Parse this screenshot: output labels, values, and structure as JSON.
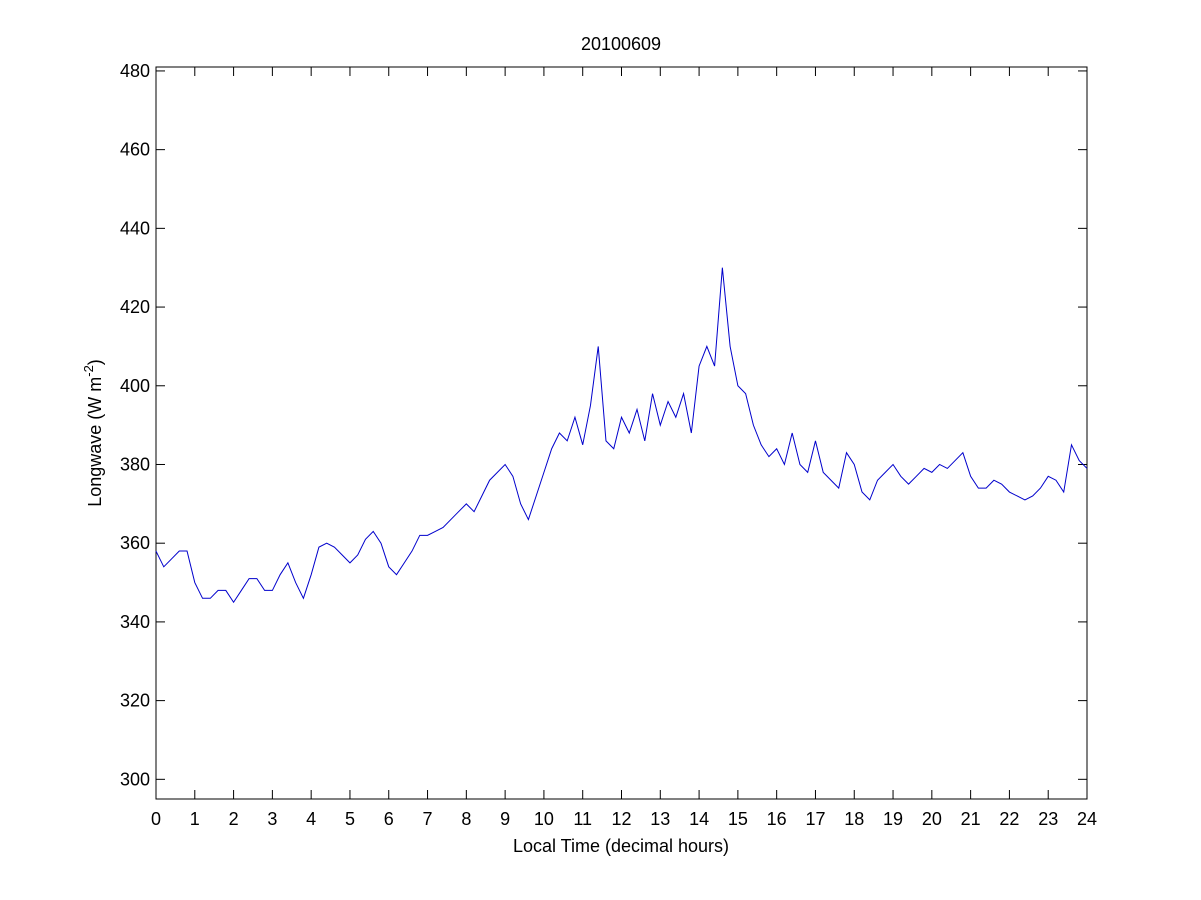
{
  "chart_data": {
    "type": "line",
    "title": "20100609",
    "x_label": "Local Time (decimal hours)",
    "y_label": {
      "text": "Longwave (W m",
      "sup": "-2",
      "end": ")"
    },
    "x": [
      0,
      0.2,
      0.4,
      0.6,
      0.8,
      1,
      1.2,
      1.4,
      1.6,
      1.8,
      2,
      2.2,
      2.4,
      2.6,
      2.8,
      3,
      3.2,
      3.4,
      3.6,
      3.8,
      4,
      4.2,
      4.4,
      4.6,
      4.8,
      5,
      5.2,
      5.4,
      5.6,
      5.8,
      6,
      6.2,
      6.4,
      6.6,
      6.8,
      7,
      7.2,
      7.4,
      7.6,
      7.8,
      8,
      8.2,
      8.4,
      8.6,
      8.8,
      9,
      9.2,
      9.4,
      9.6,
      9.8,
      10,
      10.2,
      10.4,
      10.6,
      10.8,
      11,
      11.2,
      11.4,
      11.6,
      11.8,
      12,
      12.2,
      12.4,
      12.6,
      12.8,
      13,
      13.2,
      13.4,
      13.6,
      13.8,
      14,
      14.2,
      14.4,
      14.6,
      14.8,
      15,
      15.2,
      15.4,
      15.6,
      15.8,
      16,
      16.2,
      16.4,
      16.6,
      16.8,
      17,
      17.2,
      17.4,
      17.6,
      17.8,
      18,
      18.2,
      18.4,
      18.6,
      18.8,
      19,
      19.2,
      19.4,
      19.6,
      19.8,
      20,
      20.2,
      20.4,
      20.6,
      20.8,
      21,
      21.2,
      21.4,
      21.6,
      21.8,
      22,
      22.2,
      22.4,
      22.6,
      22.8,
      23,
      23.2,
      23.4,
      23.6,
      23.8,
      24
    ],
    "series": [
      {
        "color": "#0000cc",
        "values": [
          358,
          354,
          356,
          358,
          358,
          350,
          346,
          346,
          348,
          348,
          345,
          348,
          351,
          351,
          348,
          348,
          352,
          355,
          350,
          346,
          352,
          359,
          360,
          359,
          357,
          355,
          357,
          361,
          363,
          360,
          354,
          352,
          355,
          358,
          362,
          362,
          363,
          364,
          366,
          368,
          370,
          368,
          372,
          376,
          378,
          380,
          377,
          370,
          366,
          372,
          378,
          384,
          388,
          386,
          392,
          385,
          395,
          410,
          386,
          384,
          392,
          388,
          394,
          386,
          398,
          390,
          396,
          392,
          398,
          388,
          405,
          410,
          405,
          430,
          410,
          400,
          398,
          390,
          385,
          382,
          384,
          380,
          388,
          380,
          378,
          386,
          378,
          376,
          374,
          383,
          380,
          373,
          371,
          376,
          378,
          380,
          377,
          375,
          377,
          379,
          378,
          380,
          379,
          381,
          383,
          377,
          374,
          374,
          376,
          375,
          373,
          372,
          371,
          372,
          374,
          377,
          376,
          373,
          385,
          381,
          379
        ]
      }
    ],
    "xlim": [
      0,
      24
    ],
    "ylim": [
      295,
      481
    ],
    "xticks": [
      0,
      1,
      2,
      3,
      4,
      5,
      6,
      7,
      8,
      9,
      10,
      11,
      12,
      13,
      14,
      15,
      16,
      17,
      18,
      19,
      20,
      21,
      22,
      23,
      24
    ],
    "yticks": [
      300,
      320,
      340,
      360,
      380,
      400,
      420,
      440,
      460,
      480
    ]
  }
}
